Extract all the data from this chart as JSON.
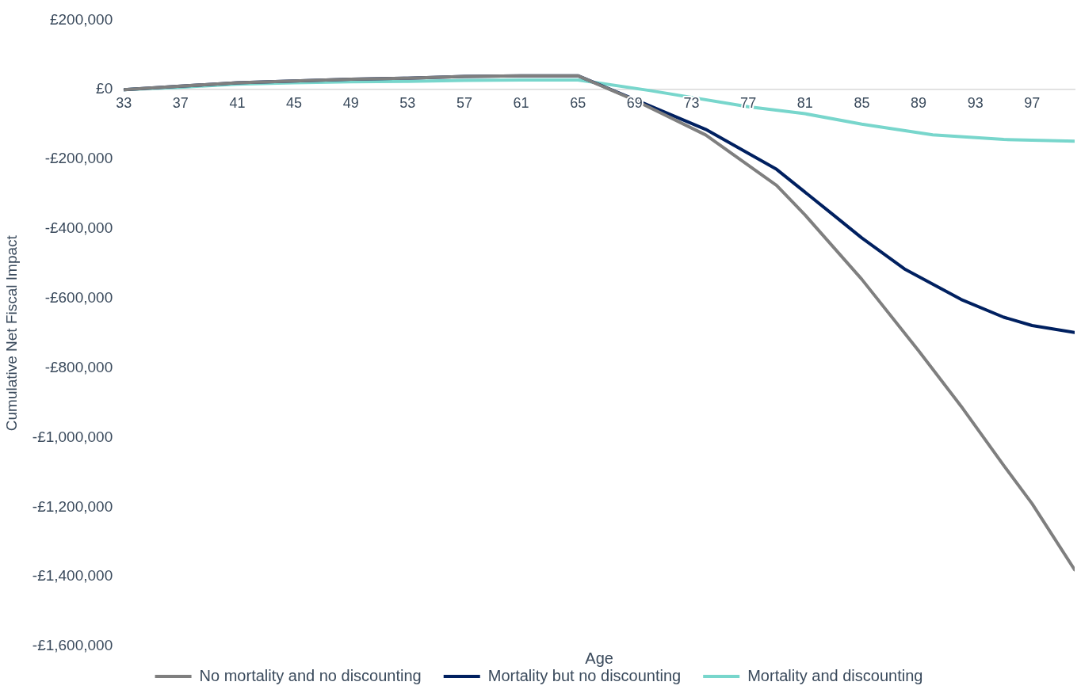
{
  "chart_data": {
    "type": "line",
    "xlabel": "Age",
    "ylabel": "Cumulative Net Fiscal Impact",
    "xlim": [
      33,
      100
    ],
    "xticks": [
      33,
      37,
      41,
      45,
      49,
      53,
      57,
      61,
      65,
      69,
      73,
      77,
      81,
      85,
      89,
      93,
      97
    ],
    "ylim": [
      -1600000,
      200000
    ],
    "yticks": [
      {
        "value": -1600000,
        "label": "-£1,600,000"
      },
      {
        "value": -1400000,
        "label": "-£1,400,000"
      },
      {
        "value": -1200000,
        "label": "-£1,200,000"
      },
      {
        "value": -1000000,
        "label": "-£1,000,000"
      },
      {
        "value": -800000,
        "label": "-£800,000"
      },
      {
        "value": -600000,
        "label": "-£600,000"
      },
      {
        "value": -400000,
        "label": "-£400,000"
      },
      {
        "value": -200000,
        "label": "-£200,000"
      },
      {
        "value": 0,
        "label": "£0"
      },
      {
        "value": 200000,
        "label": "£200,000"
      }
    ],
    "grid": false,
    "legend": "bottom",
    "marker": "none",
    "line_style": "solid",
    "series": [
      {
        "name": "No mortality and no discounting",
        "color": "#7f7f7f",
        "x": [
          33,
          37,
          41,
          45,
          49,
          53,
          57,
          61,
          65,
          69,
          74,
          79,
          81,
          85,
          89,
          92,
          95,
          97,
          100
        ],
        "values": [
          0,
          10000,
          20000,
          25000,
          30000,
          33000,
          38000,
          40000,
          40000,
          -30000,
          -130000,
          -275000,
          -360000,
          -545000,
          -750000,
          -910000,
          -1080000,
          -1190000,
          -1380000
        ]
      },
      {
        "name": "Mortality but no discounting",
        "color": "#002060",
        "x": [
          33,
          37,
          41,
          45,
          49,
          53,
          57,
          61,
          65,
          69,
          74,
          79,
          83,
          85,
          88,
          92,
          95,
          97,
          100
        ],
        "values": [
          0,
          10000,
          20000,
          25000,
          30000,
          33000,
          38000,
          40000,
          40000,
          -28000,
          -114000,
          -229000,
          -360000,
          -426000,
          -515000,
          -603000,
          -654000,
          -678000,
          -698000
        ]
      },
      {
        "name": "Mortality and discounting",
        "color": "#78d6cc",
        "x": [
          33,
          37,
          41,
          45,
          49,
          53,
          57,
          61,
          65,
          70,
          77,
          81,
          85,
          90,
          95,
          100
        ],
        "values": [
          0,
          7000,
          16000,
          20000,
          23000,
          24000,
          27000,
          28000,
          28000,
          -2000,
          -49000,
          -69000,
          -99000,
          -130000,
          -143000,
          -148000
        ]
      }
    ]
  }
}
